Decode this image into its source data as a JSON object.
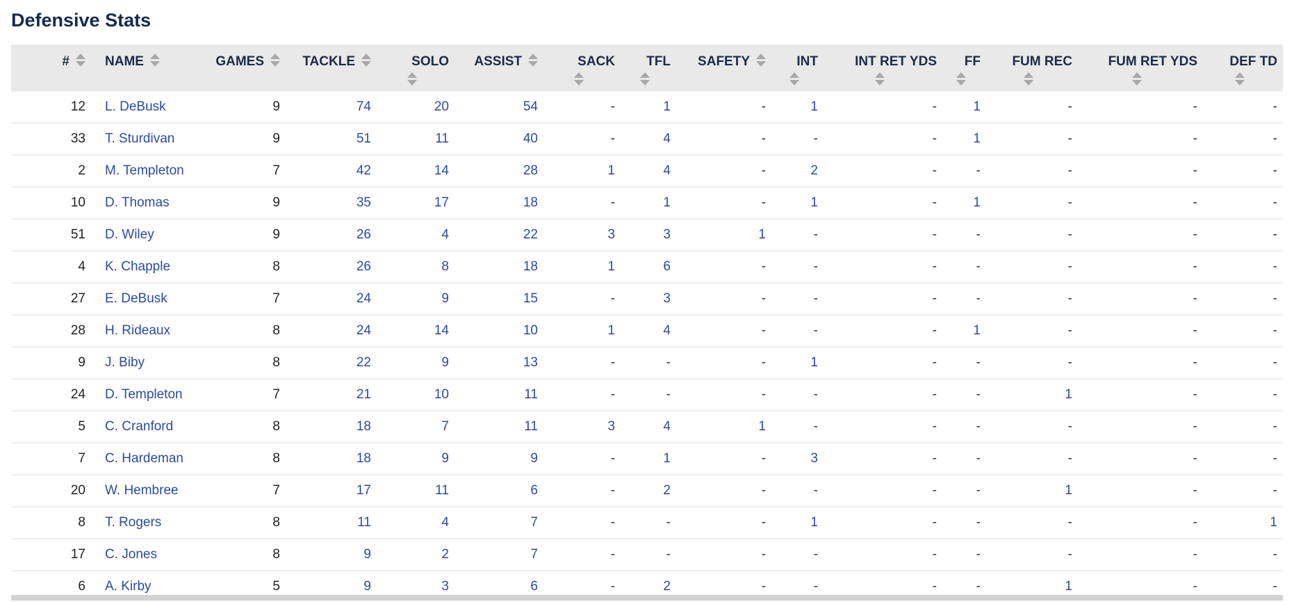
{
  "page": {
    "title": "Defensive Stats"
  },
  "table": {
    "columns": [
      {
        "key": "number",
        "label": "#",
        "align": "right",
        "type": "plain"
      },
      {
        "key": "name",
        "label": "NAME",
        "align": "left",
        "type": "link"
      },
      {
        "key": "games",
        "label": "GAMES",
        "align": "right",
        "type": "plain"
      },
      {
        "key": "tackle",
        "label": "TACKLE",
        "align": "right",
        "type": "stat"
      },
      {
        "key": "solo",
        "label": "SOLO",
        "align": "right",
        "type": "stat"
      },
      {
        "key": "assist",
        "label": "ASSIST",
        "align": "right",
        "type": "stat"
      },
      {
        "key": "sack",
        "label": "SACK",
        "align": "right",
        "type": "stat"
      },
      {
        "key": "tfl",
        "label": "TFL",
        "align": "right",
        "type": "stat"
      },
      {
        "key": "safety",
        "label": "SAFETY",
        "align": "right",
        "type": "stat"
      },
      {
        "key": "int",
        "label": "INT",
        "align": "right",
        "type": "stat"
      },
      {
        "key": "int_ret_yds",
        "label": "INT RET YDS",
        "align": "right",
        "type": "stat"
      },
      {
        "key": "ff",
        "label": "FF",
        "align": "right",
        "type": "stat"
      },
      {
        "key": "fum_rec",
        "label": "FUM REC",
        "align": "right",
        "type": "stat"
      },
      {
        "key": "fum_ret_yds",
        "label": "FUM RET YDS",
        "align": "right",
        "type": "stat"
      },
      {
        "key": "def_td",
        "label": "DEF TD",
        "align": "right",
        "type": "stat"
      }
    ],
    "rows": [
      [
        "12",
        "L. DeBusk",
        "9",
        "74",
        "20",
        "54",
        "-",
        "1",
        "-",
        "1",
        "-",
        "1",
        "-",
        "-",
        "-"
      ],
      [
        "33",
        "T. Sturdivan",
        "9",
        "51",
        "11",
        "40",
        "-",
        "4",
        "-",
        "-",
        "-",
        "1",
        "-",
        "-",
        "-"
      ],
      [
        "2",
        "M. Templeton",
        "7",
        "42",
        "14",
        "28",
        "1",
        "4",
        "-",
        "2",
        "-",
        "-",
        "-",
        "-",
        "-"
      ],
      [
        "10",
        "D. Thomas",
        "9",
        "35",
        "17",
        "18",
        "-",
        "1",
        "-",
        "1",
        "-",
        "1",
        "-",
        "-",
        "-"
      ],
      [
        "51",
        "D. Wiley",
        "9",
        "26",
        "4",
        "22",
        "3",
        "3",
        "1",
        "-",
        "-",
        "-",
        "-",
        "-",
        "-"
      ],
      [
        "4",
        "K. Chapple",
        "8",
        "26",
        "8",
        "18",
        "1",
        "6",
        "-",
        "-",
        "-",
        "-",
        "-",
        "-",
        "-"
      ],
      [
        "27",
        "E. DeBusk",
        "7",
        "24",
        "9",
        "15",
        "-",
        "3",
        "-",
        "-",
        "-",
        "-",
        "-",
        "-",
        "-"
      ],
      [
        "28",
        "H. Rideaux",
        "8",
        "24",
        "14",
        "10",
        "1",
        "4",
        "-",
        "-",
        "-",
        "1",
        "-",
        "-",
        "-"
      ],
      [
        "9",
        "J. Biby",
        "8",
        "22",
        "9",
        "13",
        "-",
        "-",
        "-",
        "1",
        "-",
        "-",
        "-",
        "-",
        "-"
      ],
      [
        "24",
        "D. Templeton",
        "7",
        "21",
        "10",
        "11",
        "-",
        "-",
        "-",
        "-",
        "-",
        "-",
        "1",
        "-",
        "-"
      ],
      [
        "5",
        "C. Cranford",
        "8",
        "18",
        "7",
        "11",
        "3",
        "4",
        "1",
        "-",
        "-",
        "-",
        "-",
        "-",
        "-"
      ],
      [
        "7",
        "C. Hardeman",
        "8",
        "18",
        "9",
        "9",
        "-",
        "1",
        "-",
        "3",
        "-",
        "-",
        "-",
        "-",
        "-"
      ],
      [
        "20",
        "W. Hembree",
        "7",
        "17",
        "11",
        "6",
        "-",
        "2",
        "-",
        "-",
        "-",
        "-",
        "1",
        "-",
        "-"
      ],
      [
        "8",
        "T. Rogers",
        "8",
        "11",
        "4",
        "7",
        "-",
        "-",
        "-",
        "1",
        "-",
        "-",
        "-",
        "-",
        "1"
      ],
      [
        "17",
        "C. Jones",
        "8",
        "9",
        "2",
        "7",
        "-",
        "-",
        "-",
        "-",
        "-",
        "-",
        "-",
        "-",
        "-"
      ],
      [
        "6",
        "A. Kirby",
        "5",
        "9",
        "3",
        "6",
        "-",
        "2",
        "-",
        "-",
        "-",
        "-",
        "1",
        "-",
        "-"
      ]
    ],
    "empty_marker": "-"
  },
  "colors": {
    "link": "#2d4a9d",
    "title": "#152a4e",
    "header_text": "#1b2b4a",
    "header_bg": "#e9e9e9",
    "sort_arrow": "#a8a8a8",
    "text": "#222222",
    "dash": "#333333",
    "separator": "#efefef",
    "strip": "#d2d2d2"
  }
}
